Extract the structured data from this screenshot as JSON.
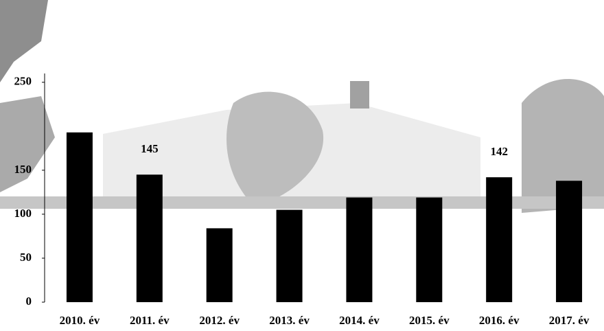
{
  "chart_data": {
    "type": "bar",
    "categories": [
      "2010. év",
      "2011. év",
      "2012. év",
      "2013. év",
      "2014. év",
      "2015. év",
      "2016. év",
      "2017. év"
    ],
    "values": [
      193,
      145,
      84,
      105,
      119,
      119,
      142,
      138
    ],
    "labeled": [
      false,
      true,
      false,
      false,
      false,
      false,
      true,
      false
    ],
    "color": "#000000",
    "ylim": [
      0,
      260
    ],
    "yticks": [
      0,
      50,
      100,
      150,
      250
    ]
  }
}
